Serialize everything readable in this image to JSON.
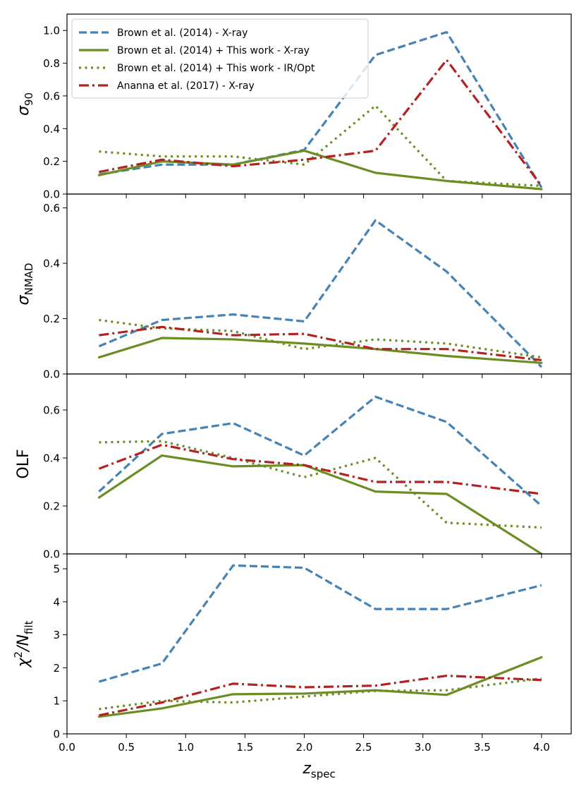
{
  "chart_data": {
    "type": "line",
    "x": [
      0.27,
      0.8,
      1.4,
      2.0,
      2.6,
      3.2,
      4.0
    ],
    "xlabel": "z",
    "xlabel_sub": "spec",
    "xlim": [
      0.0,
      4.25
    ],
    "xticks": [
      0.0,
      0.5,
      1.0,
      1.5,
      2.0,
      2.5,
      3.0,
      3.5,
      4.0
    ],
    "xtick_labels": [
      "0.0",
      "0.5",
      "1.0",
      "1.5",
      "2.0",
      "2.5",
      "3.0",
      "3.5",
      "4.0"
    ],
    "legend": {
      "position": "top-left",
      "entries": [
        "Brown et al. (2014) - X-ray",
        "Brown et al. (2014) + This work - X-ray",
        "Brown et al. (2014) + This work - IR/Opt",
        "Ananna et al. (2017) - X-ray"
      ]
    },
    "panels": [
      {
        "ylabel": "σ",
        "ylabel_sub": "90",
        "ylim": [
          0.0,
          1.1
        ],
        "yticks": [
          0.0,
          0.2,
          0.4,
          0.6,
          0.8,
          1.0
        ],
        "ytick_labels": [
          "0.0",
          "0.2",
          "0.4",
          "0.6",
          "0.8",
          "1.0"
        ],
        "series": [
          {
            "name": "Brown et al. (2014) - X-ray",
            "values": [
              0.12,
              0.18,
              0.18,
              0.27,
              0.85,
              0.99,
              0.04
            ]
          },
          {
            "name": "Brown et al. (2014) + This work - X-ray",
            "values": [
              0.115,
              0.2,
              0.18,
              0.265,
              0.13,
              0.08,
              0.03
            ]
          },
          {
            "name": "Brown et al. (2014) + This work - IR/Opt",
            "values": [
              0.26,
              0.23,
              0.23,
              0.18,
              0.54,
              0.08,
              0.05
            ]
          },
          {
            "name": "Ananna et al. (2017) - X-ray",
            "values": [
              0.135,
              0.21,
              0.17,
              0.21,
              0.265,
              0.82,
              0.05
            ]
          }
        ]
      },
      {
        "ylabel": "σ",
        "ylabel_sub": "NMAD",
        "ylim": [
          0.0,
          0.65
        ],
        "yticks": [
          0.0,
          0.2,
          0.4,
          0.6
        ],
        "ytick_labels": [
          "0.0",
          "0.2",
          "0.4",
          "0.6"
        ],
        "series": [
          {
            "name": "Brown et al. (2014) - X-ray",
            "values": [
              0.1,
              0.195,
              0.215,
              0.19,
              0.555,
              0.37,
              0.025
            ]
          },
          {
            "name": "Brown et al. (2014) + This work - X-ray",
            "values": [
              0.06,
              0.13,
              0.125,
              0.11,
              0.09,
              0.065,
              0.04
            ]
          },
          {
            "name": "Brown et al. (2014) + This work - IR/Opt",
            "values": [
              0.195,
              0.165,
              0.155,
              0.09,
              0.125,
              0.11,
              0.06
            ]
          },
          {
            "name": "Ananna et al. (2017) - X-ray",
            "values": [
              0.14,
              0.17,
              0.14,
              0.145,
              0.09,
              0.09,
              0.05
            ]
          }
        ]
      },
      {
        "ylabel": "OLF",
        "ylabel_sub": "",
        "ylim": [
          0.0,
          0.75
        ],
        "yticks": [
          0.0,
          0.2,
          0.4,
          0.6
        ],
        "ytick_labels": [
          "0.0",
          "0.2",
          "0.4",
          "0.6"
        ],
        "series": [
          {
            "name": "Brown et al. (2014) - X-ray",
            "values": [
              0.26,
              0.5,
              0.545,
              0.41,
              0.655,
              0.55,
              0.2
            ]
          },
          {
            "name": "Brown et al. (2014) + This work - X-ray",
            "values": [
              0.235,
              0.41,
              0.365,
              0.37,
              0.26,
              0.25,
              0.0
            ]
          },
          {
            "name": "Brown et al. (2014) + This work - IR/Opt",
            "values": [
              0.465,
              0.47,
              0.4,
              0.32,
              0.4,
              0.13,
              0.11
            ]
          },
          {
            "name": "Ananna et al. (2017) - X-ray",
            "values": [
              0.355,
              0.455,
              0.395,
              0.37,
              0.3,
              0.3,
              0.25
            ]
          }
        ]
      },
      {
        "ylabel": "χ",
        "ylabel_sup": "2",
        "ylabel_tail": "/N",
        "ylabel_sub": "filt",
        "ylim": [
          0.0,
          5.45
        ],
        "yticks": [
          0,
          1,
          2,
          3,
          4,
          5
        ],
        "ytick_labels": [
          "0",
          "1",
          "2",
          "3",
          "4",
          "5"
        ],
        "series": [
          {
            "name": "Brown et al. (2014) - X-ray",
            "values": [
              1.58,
              2.13,
              5.1,
              5.03,
              3.78,
              3.78,
              4.5
            ]
          },
          {
            "name": "Brown et al. (2014) + This work - X-ray",
            "values": [
              0.52,
              0.77,
              1.2,
              1.22,
              1.32,
              1.18,
              2.32
            ]
          },
          {
            "name": "Brown et al. (2014) + This work - IR/Opt",
            "values": [
              0.75,
              1.0,
              0.95,
              1.13,
              1.3,
              1.32,
              1.68
            ]
          },
          {
            "name": "Ananna et al. (2017) - X-ray",
            "values": [
              0.56,
              0.95,
              1.52,
              1.41,
              1.46,
              1.76,
              1.63
            ]
          }
        ]
      }
    ],
    "styles": [
      {
        "color": "#4682b4",
        "dash": "dashed"
      },
      {
        "color": "#6b8e23",
        "dash": "solid"
      },
      {
        "color": "#6b8e23",
        "dash": "dotted"
      },
      {
        "color": "#b22222",
        "dash": "dashdot"
      }
    ]
  }
}
